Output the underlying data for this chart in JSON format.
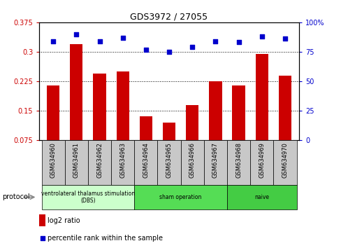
{
  "title": "GDS3972 / 27055",
  "samples": [
    "GSM634960",
    "GSM634961",
    "GSM634962",
    "GSM634963",
    "GSM634964",
    "GSM634965",
    "GSM634966",
    "GSM634967",
    "GSM634968",
    "GSM634969",
    "GSM634970"
  ],
  "log2_ratio": [
    0.215,
    0.32,
    0.245,
    0.25,
    0.135,
    0.12,
    0.165,
    0.225,
    0.215,
    0.295,
    0.24
  ],
  "percentile_rank": [
    84,
    90,
    84,
    87,
    77,
    75,
    79,
    84,
    83,
    88,
    86
  ],
  "bar_color": "#cc0000",
  "dot_color": "#0000cc",
  "ylim_left": [
    0.075,
    0.375
  ],
  "ylim_right": [
    0,
    100
  ],
  "yticks_left": [
    0.075,
    0.15,
    0.225,
    0.3,
    0.375
  ],
  "ytick_labels_left": [
    "0.075",
    "0.15",
    "0.225",
    "0.3",
    "0.375"
  ],
  "yticks_right": [
    0,
    25,
    50,
    75,
    100
  ],
  "ytick_labels_right": [
    "0",
    "25",
    "50",
    "75",
    "100%"
  ],
  "groups": [
    {
      "label": "ventrolateral thalamus stimulation\n(DBS)",
      "start": 0,
      "end": 3,
      "color": "#ccffcc"
    },
    {
      "label": "sham operation",
      "start": 4,
      "end": 7,
      "color": "#55dd55"
    },
    {
      "label": "naive",
      "start": 8,
      "end": 10,
      "color": "#44cc44"
    }
  ],
  "protocol_label": "protocol",
  "legend_bar_label": "log2 ratio",
  "legend_dot_label": "percentile rank within the sample",
  "background_xtick": "#c8c8c8"
}
